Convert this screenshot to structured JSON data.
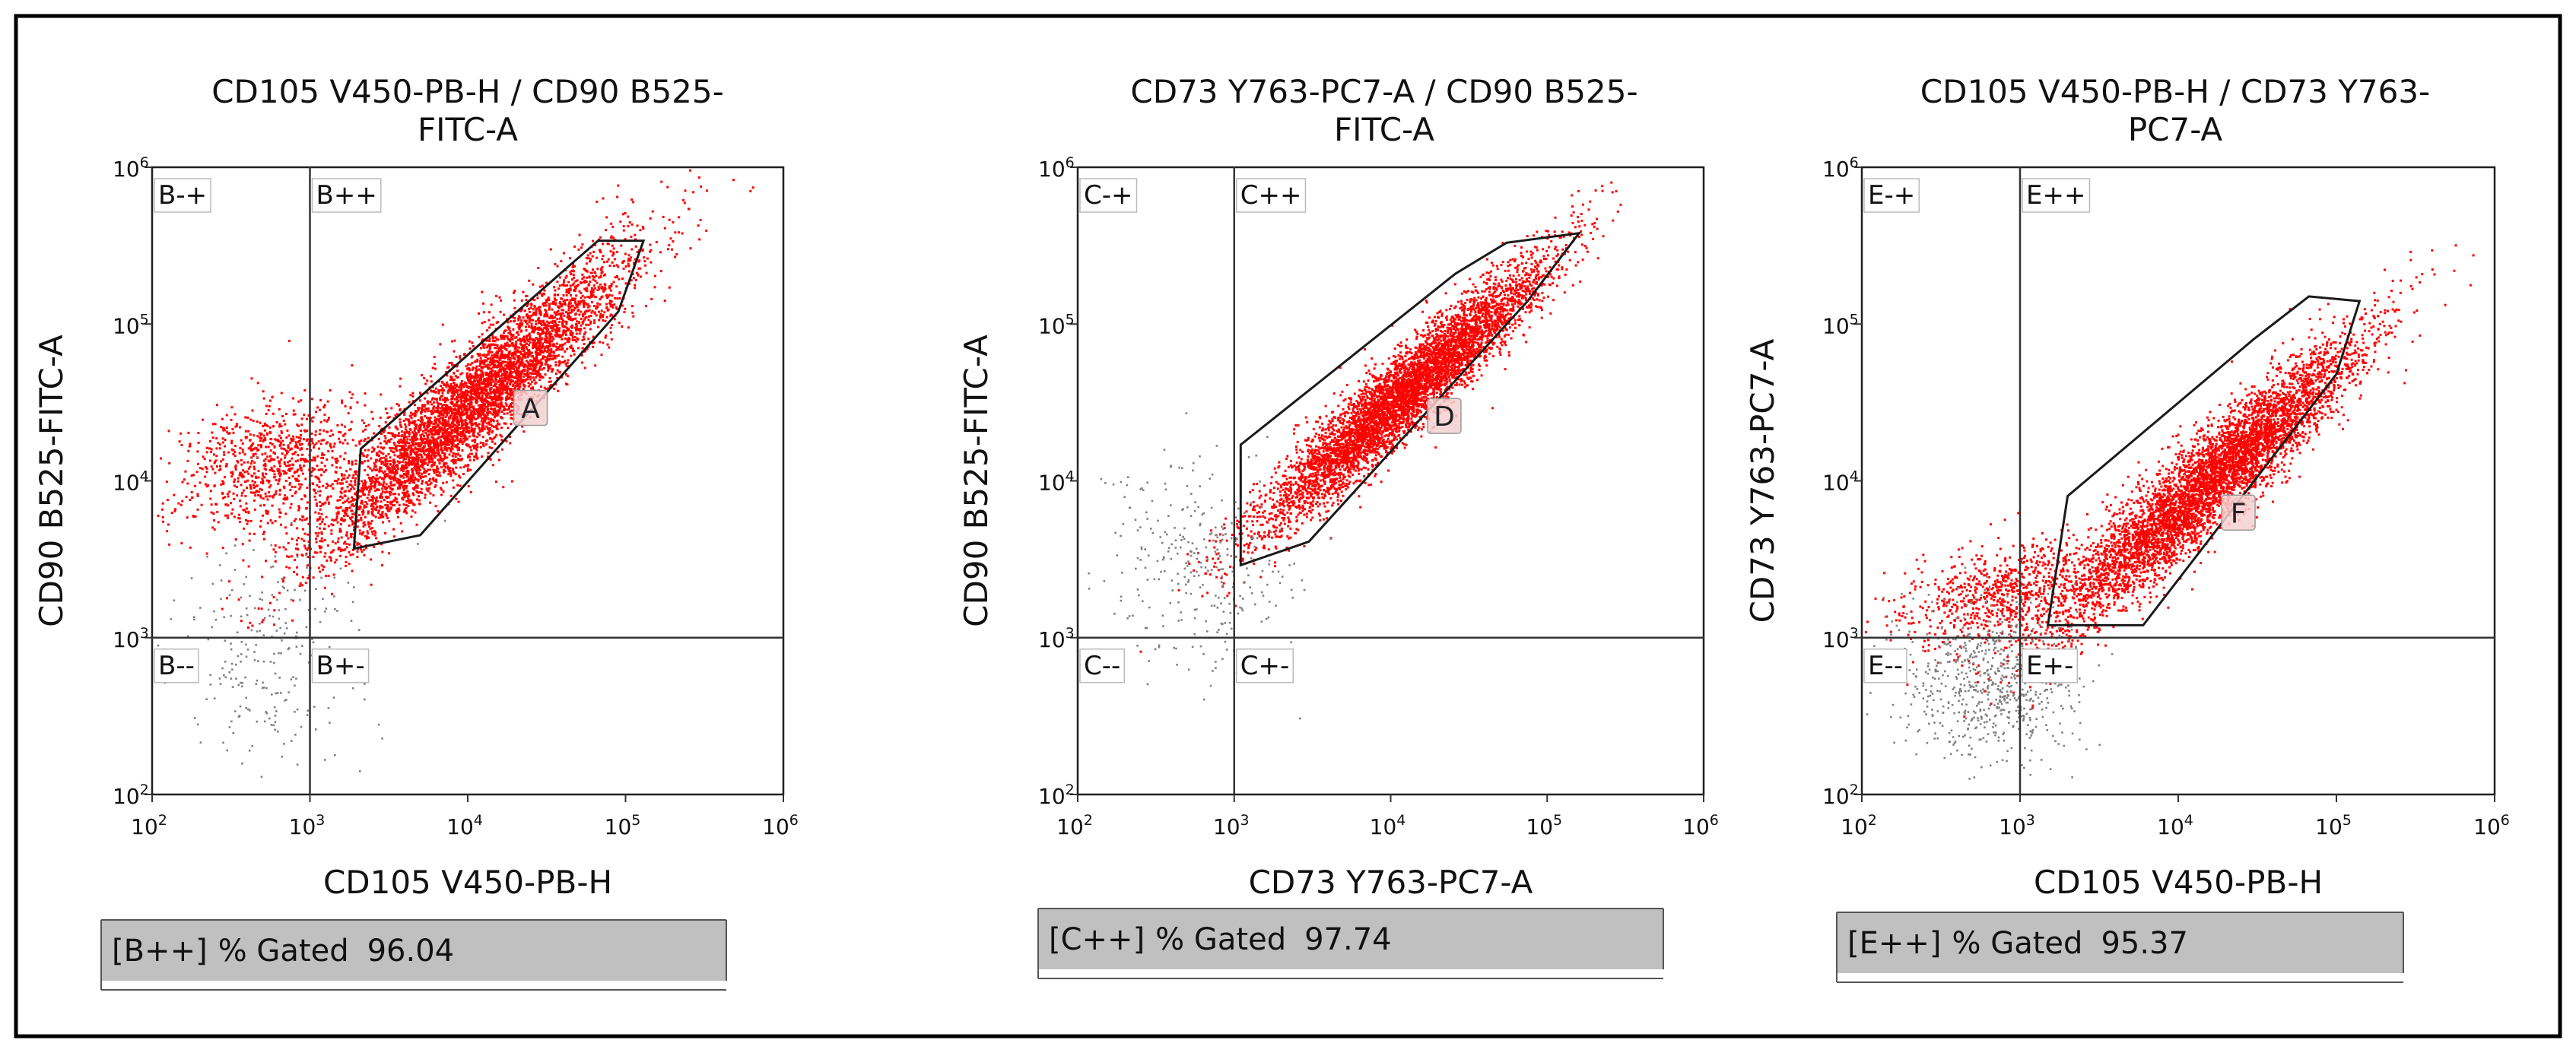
{
  "colors": {
    "frame": "#000000",
    "gated": "#ff0000",
    "ungated": "#808080",
    "stat_bg": "#c0c0c0",
    "gate_line": "#1a1a1a"
  },
  "chart_data": [
    {
      "type": "scatter",
      "title": [
        "CD105 V450-PB-H / CD90 B525-",
        "FITC-A"
      ],
      "xlabel": "CD105 V450-PB-H",
      "ylabel": "CD90 B525-FITC-A",
      "scale": "log10",
      "xlim": [
        100,
        1000000
      ],
      "ylim": [
        100,
        1000000
      ],
      "x_ticks": [
        {
          "base": "10",
          "exp": "2"
        },
        {
          "base": "10",
          "exp": "3"
        },
        {
          "base": "10",
          "exp": "4"
        },
        {
          "base": "10",
          "exp": "5"
        },
        {
          "base": "10",
          "exp": "6"
        }
      ],
      "y_ticks": [
        {
          "base": "10",
          "exp": "2"
        },
        {
          "base": "10",
          "exp": "3"
        },
        {
          "base": "10",
          "exp": "4"
        },
        {
          "base": "10",
          "exp": "5"
        },
        {
          "base": "10",
          "exp": "6"
        }
      ],
      "quadrant_split": {
        "x": 1000,
        "y": 1000
      },
      "quadrants": {
        "upper_left": "B-+",
        "upper_right": "B++",
        "lower_left": "B--",
        "lower_right": "B+-"
      },
      "gate": {
        "label": "A",
        "label_at": [
          25000,
          27000
        ],
        "polygon": [
          [
            1900,
            3700
          ],
          [
            2100,
            16000
          ],
          [
            45000,
            240000
          ],
          [
            67000,
            340000
          ],
          [
            130000,
            340000
          ],
          [
            90000,
            120000
          ],
          [
            5000,
            4500
          ]
        ]
      },
      "populations": [
        {
          "name": "positive",
          "color": "#ff0000",
          "center": [
            11000,
            32000
          ],
          "slope": 0.96,
          "spread_major": 0.65,
          "spread_minor": 0.13,
          "count": 5000
        },
        {
          "name": "shoulder",
          "color": "#ff0000",
          "center": [
            600,
            13000
          ],
          "slope": 0.3,
          "spread_major": 0.35,
          "spread_minor": 0.2,
          "count": 900
        },
        {
          "name": "negative",
          "color": "#808080",
          "center": [
            500,
            800
          ],
          "slope": 0.0,
          "spread_major": 0.3,
          "spread_minor": 0.4,
          "count": 250
        }
      ],
      "stat": {
        "gate": "[B++]",
        "metric": "% Gated",
        "value": "96.04"
      }
    },
    {
      "type": "scatter",
      "title": [
        "CD73 Y763-PC7-A / CD90 B525-",
        "FITC-A"
      ],
      "xlabel": "CD73 Y763-PC7-A",
      "ylabel": "CD90 B525-FITC-A",
      "scale": "log10",
      "xlim": [
        100,
        1000000
      ],
      "ylim": [
        100,
        1000000
      ],
      "x_ticks": [
        {
          "base": "10",
          "exp": "2"
        },
        {
          "base": "10",
          "exp": "3"
        },
        {
          "base": "10",
          "exp": "4"
        },
        {
          "base": "10",
          "exp": "5"
        },
        {
          "base": "10",
          "exp": "6"
        }
      ],
      "y_ticks": [
        {
          "base": "10",
          "exp": "2"
        },
        {
          "base": "10",
          "exp": "3"
        },
        {
          "base": "10",
          "exp": "4"
        },
        {
          "base": "10",
          "exp": "5"
        },
        {
          "base": "10",
          "exp": "6"
        }
      ],
      "quadrant_split": {
        "x": 1000,
        "y": 1000
      },
      "quadrants": {
        "upper_left": "C-+",
        "upper_right": "C++",
        "lower_left": "C--",
        "lower_right": "C+-"
      },
      "gate": {
        "label": "D",
        "label_at": [
          22000,
          24000
        ],
        "polygon": [
          [
            1100,
            2900
          ],
          [
            1100,
            17000
          ],
          [
            26000,
            210000
          ],
          [
            55000,
            330000
          ],
          [
            160000,
            380000
          ],
          [
            75000,
            140000
          ],
          [
            3000,
            4100
          ]
        ]
      },
      "populations": [
        {
          "name": "positive",
          "color": "#ff0000",
          "center": [
            12000,
            35000
          ],
          "slope": 0.93,
          "spread_major": 0.6,
          "spread_minor": 0.1,
          "count": 5500
        },
        {
          "name": "negative",
          "color": "#808080",
          "center": [
            600,
            3000
          ],
          "slope": 0.2,
          "spread_major": 0.3,
          "spread_minor": 0.35,
          "count": 300
        }
      ],
      "stat": {
        "gate": "[C++]",
        "metric": "% Gated",
        "value": "97.74"
      }
    },
    {
      "type": "scatter",
      "title": [
        "CD105 V450-PB-H / CD73 Y763-",
        "PC7-A"
      ],
      "xlabel": "CD105 V450-PB-H",
      "ylabel": "CD73 Y763-PC7-A",
      "scale": "log10",
      "xlim": [
        100,
        1000000
      ],
      "ylim": [
        100,
        1000000
      ],
      "x_ticks": [
        {
          "base": "10",
          "exp": "2"
        },
        {
          "base": "10",
          "exp": "3"
        },
        {
          "base": "10",
          "exp": "4"
        },
        {
          "base": "10",
          "exp": "5"
        },
        {
          "base": "10",
          "exp": "6"
        }
      ],
      "y_ticks": [
        {
          "base": "10",
          "exp": "2"
        },
        {
          "base": "10",
          "exp": "3"
        },
        {
          "base": "10",
          "exp": "4"
        },
        {
          "base": "10",
          "exp": "5"
        },
        {
          "base": "10",
          "exp": "6"
        }
      ],
      "quadrant_split": {
        "x": 1000,
        "y": 1000
      },
      "quadrants": {
        "upper_left": "E-+",
        "upper_right": "E++",
        "lower_left": "E--",
        "lower_right": "E+-"
      },
      "gate": {
        "label": "F",
        "label_at": [
          24000,
          5800
        ],
        "polygon": [
          [
            1500,
            1200
          ],
          [
            2000,
            8000
          ],
          [
            30000,
            80000
          ],
          [
            67000,
            150000
          ],
          [
            140000,
            140000
          ],
          [
            100000,
            48000
          ],
          [
            6000,
            1200
          ]
        ]
      },
      "populations": [
        {
          "name": "positive",
          "color": "#ff0000",
          "center": [
            16000,
            10000
          ],
          "slope": 0.95,
          "spread_major": 0.65,
          "spread_minor": 0.12,
          "count": 5200
        },
        {
          "name": "shoulder",
          "color": "#ff0000",
          "center": [
            800,
            1900
          ],
          "slope": 0.3,
          "spread_major": 0.35,
          "spread_minor": 0.15,
          "count": 800
        },
        {
          "name": "negative",
          "color": "#808080",
          "center": [
            650,
            550
          ],
          "slope": 0.0,
          "spread_major": 0.28,
          "spread_minor": 0.25,
          "count": 700
        }
      ],
      "stat": {
        "gate": "[E++]",
        "metric": "% Gated",
        "value": "95.37"
      }
    }
  ]
}
